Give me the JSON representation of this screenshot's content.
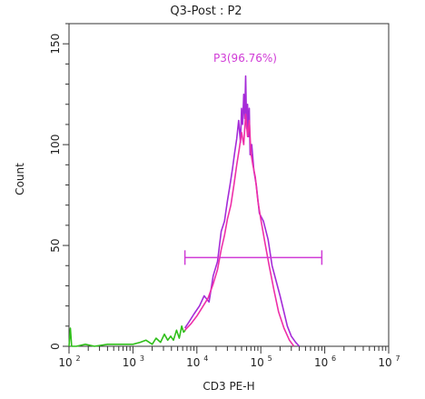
{
  "chart_data": {
    "type": "line",
    "title": "Q3-Post : P2",
    "xlabel": "CD3 PE-H",
    "ylabel": "Count",
    "x_scale": "log",
    "xlim": [
      100,
      10000000
    ],
    "ylim": [
      0,
      160
    ],
    "x_tick_labels": [
      {
        "base": "10",
        "exp": "2"
      },
      {
        "base": "10",
        "exp": "3"
      },
      {
        "base": "10",
        "exp": "4"
      },
      {
        "base": "10",
        "exp": "5"
      },
      {
        "base": "10",
        "exp": "6"
      },
      {
        "base": "10",
        "exp": "7"
      }
    ],
    "y_ticks": [
      {
        "value": 0,
        "label": "0"
      },
      {
        "value": 50,
        "label": "50"
      },
      {
        "value": 100,
        "label": "100"
      },
      {
        "value": 150,
        "label": "150"
      }
    ],
    "grid": false,
    "gate": {
      "label": "P3(96.76%)",
      "x_start": 6500,
      "x_end": 900000,
      "y": 44,
      "color": "#d03bd6"
    },
    "series": [
      {
        "color": "#2fbf1a",
        "x": [
          100,
          105,
          110,
          130,
          180,
          250,
          400,
          700,
          1000,
          1300,
          1600,
          2000,
          2300,
          2700,
          3100,
          3500,
          3900,
          4300,
          4800,
          5300,
          5800,
          6200,
          6600
        ],
        "y": [
          0,
          9,
          0,
          0,
          1,
          0,
          1,
          1,
          1,
          2,
          3,
          1,
          4,
          2,
          6,
          3,
          5,
          3,
          8,
          4,
          10,
          7,
          8
        ]
      },
      {
        "color": "#a52bd8",
        "x": [
          6500,
          7500,
          9000,
          11000,
          13000,
          15500,
          18000,
          21000,
          24000,
          27000,
          30000,
          33000,
          36000,
          39000,
          42000,
          45000,
          48000,
          50000,
          52000,
          54000,
          56000,
          58000,
          60000,
          62000,
          64000,
          66000,
          68000,
          72000,
          78000,
          85000,
          95000,
          110000,
          130000,
          150000,
          175000,
          200000,
          230000,
          260000,
          300000,
          350000,
          400000
        ],
        "y": [
          9,
          12,
          16,
          20,
          25,
          22,
          35,
          42,
          57,
          62,
          72,
          80,
          88,
          96,
          103,
          112,
          101,
          118,
          110,
          125,
          113,
          134,
          108,
          120,
          104,
          118,
          95,
          100,
          87,
          80,
          66,
          62,
          53,
          40,
          32,
          25,
          17,
          10,
          5,
          2,
          0
        ]
      },
      {
        "color": "#ee2fa8",
        "x": [
          6500,
          8000,
          10000,
          12000,
          15000,
          18000,
          21000,
          24000,
          27000,
          30000,
          34000,
          38000,
          42000,
          46000,
          50000,
          54000,
          58000,
          62000,
          66000,
          70000,
          75000,
          82000,
          90000,
          100000,
          115000,
          135000,
          160000,
          190000,
          230000,
          280000,
          330000
        ],
        "y": [
          8,
          11,
          15,
          19,
          24,
          31,
          38,
          48,
          55,
          63,
          70,
          80,
          90,
          98,
          106,
          100,
          115,
          104,
          112,
          96,
          90,
          84,
          72,
          63,
          52,
          40,
          28,
          17,
          9,
          3,
          0
        ]
      }
    ]
  }
}
